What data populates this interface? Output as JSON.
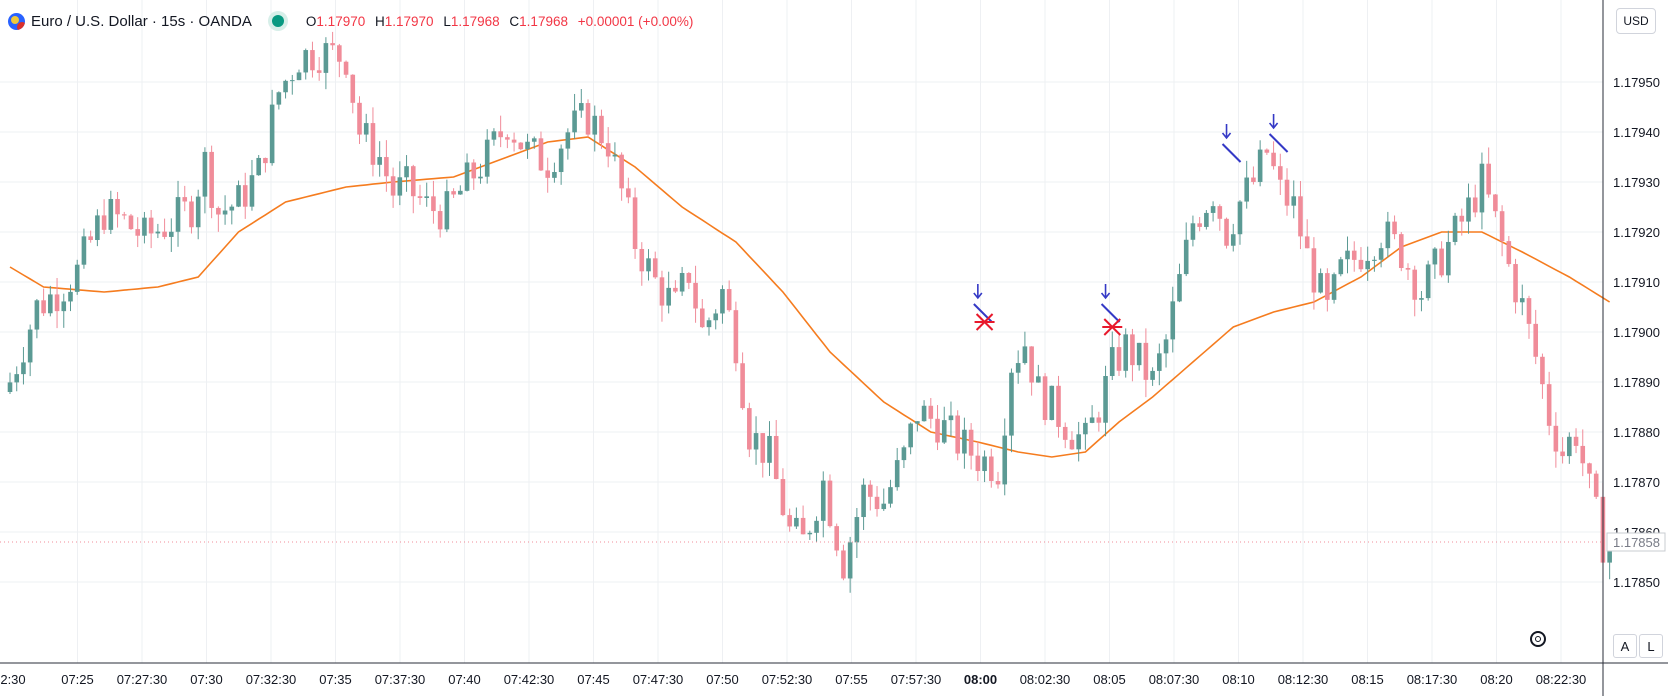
{
  "header": {
    "title": "Euro / U.S. Dollar · 15s · OANDA",
    "open_label": "O",
    "open_value": "1.17970",
    "high_label": "H",
    "high_value": "1.17970",
    "low_label": "L",
    "low_value": "1.17968",
    "close_label": "C",
    "close_value": "1.17968",
    "change": "+0.00001 (+0.00%)"
  },
  "price_scale": {
    "currency": "USD",
    "current_price": "1.17858",
    "ticks": [
      "1.17950",
      "1.17940",
      "1.17930",
      "1.17920",
      "1.17910",
      "1.17900",
      "1.17890",
      "1.17880",
      "1.17870",
      "1.17860",
      "1.17850"
    ]
  },
  "buttons": {
    "auto": "A",
    "log": "L"
  },
  "colors": {
    "up": "#5b9a94",
    "down": "#f08c99",
    "ma": "#f57c1f",
    "marker_arrow": "#3439c6",
    "marker_x": "#e8192c",
    "grid": "#eef0f3"
  },
  "chart_data": {
    "type": "candlestick",
    "title": "Euro / U.S. Dollar · 15s · OANDA",
    "xlabel": "",
    "ylabel": "",
    "ylim": [
      1.17842,
      1.17968
    ],
    "grid": true,
    "x_ticks": [
      "2:30",
      "07:25",
      "07:27:30",
      "07:30",
      "07:32:30",
      "07:35",
      "07:37:30",
      "07:40",
      "07:42:30",
      "07:45",
      "07:47:30",
      "07:50",
      "07:52:30",
      "07:55",
      "07:57:30",
      "08:00",
      "08:02:30",
      "08:05",
      "08:07:30",
      "08:10",
      "08:12:30",
      "08:15",
      "08:17:30",
      "08:20",
      "08:22:30"
    ],
    "x_tick_bold": "08:00",
    "close_path": [
      [
        0,
        1.1789
      ],
      [
        4,
        1.17905
      ],
      [
        7,
        1.17908
      ],
      [
        10,
        1.17912
      ],
      [
        14,
        1.17924
      ],
      [
        17,
        1.17922
      ],
      [
        20,
        1.17919
      ],
      [
        24,
        1.17922
      ],
      [
        27,
        1.17925
      ],
      [
        29,
        1.17934
      ],
      [
        31,
        1.17924
      ],
      [
        34,
        1.17926
      ],
      [
        37,
        1.17932
      ],
      [
        40,
        1.17948
      ],
      [
        43,
        1.17955
      ],
      [
        46,
        1.17956
      ],
      [
        50,
        1.17955
      ],
      [
        52,
        1.1794
      ],
      [
        55,
        1.17935
      ],
      [
        57,
        1.17928
      ],
      [
        59,
        1.17929
      ],
      [
        62,
        1.17925
      ],
      [
        65,
        1.17924
      ],
      [
        68,
        1.1793
      ],
      [
        71,
        1.17935
      ],
      [
        74,
        1.17942
      ],
      [
        77,
        1.17936
      ],
      [
        80,
        1.17934
      ],
      [
        83,
        1.1794
      ],
      [
        86,
        1.17943
      ],
      [
        89,
        1.17938
      ],
      [
        91,
        1.17928
      ],
      [
        93,
        1.17918
      ],
      [
        96,
        1.1791
      ],
      [
        99,
        1.17905
      ],
      [
        101,
        1.17912
      ],
      [
        103,
        1.179
      ],
      [
        106,
        1.17908
      ],
      [
        108,
        1.17898
      ],
      [
        110,
        1.1788
      ],
      [
        113,
        1.17875
      ],
      [
        116,
        1.1786
      ],
      [
        118,
        1.17858
      ],
      [
        121,
        1.1787
      ],
      [
        124,
        1.17854
      ],
      [
        127,
        1.17868
      ],
      [
        130,
        1.17866
      ],
      [
        133,
        1.17875
      ],
      [
        135,
        1.17884
      ],
      [
        138,
        1.17882
      ],
      [
        141,
        1.17878
      ],
      [
        144,
        1.17875
      ],
      [
        147,
        1.17873
      ],
      [
        149,
        1.17894
      ],
      [
        151,
        1.17898
      ],
      [
        153,
        1.17888
      ],
      [
        155,
        1.17885
      ],
      [
        158,
        1.1788
      ],
      [
        160,
        1.17878
      ],
      [
        162,
        1.17885
      ],
      [
        164,
        1.17893
      ],
      [
        166,
        1.17897
      ],
      [
        168,
        1.17894
      ],
      [
        170,
        1.1789
      ],
      [
        172,
        1.17898
      ],
      [
        174,
        1.1791
      ],
      [
        176,
        1.17922
      ],
      [
        179,
        1.17928
      ],
      [
        181,
        1.1792
      ],
      [
        183,
        1.17926
      ],
      [
        185,
        1.1793
      ],
      [
        187,
        1.17936
      ],
      [
        189,
        1.17928
      ],
      [
        191,
        1.17925
      ],
      [
        193,
        1.17915
      ],
      [
        196,
        1.17904
      ],
      [
        198,
        1.17912
      ],
      [
        201,
        1.17916
      ],
      [
        204,
        1.1792
      ],
      [
        207,
        1.17916
      ],
      [
        210,
        1.17908
      ],
      [
        213,
        1.17915
      ],
      [
        216,
        1.17922
      ],
      [
        219,
        1.1793
      ],
      [
        221,
        1.17922
      ],
      [
        223,
        1.17913
      ],
      [
        225,
        1.17905
      ],
      [
        227,
        1.17895
      ],
      [
        229,
        1.17883
      ],
      [
        231,
        1.17876
      ],
      [
        233,
        1.1788
      ],
      [
        235,
        1.17868
      ],
      [
        237,
        1.17858
      ],
      [
        238,
        1.17856
      ]
    ],
    "ma_path": [
      [
        0,
        1.17913
      ],
      [
        5,
        1.17909
      ],
      [
        14,
        1.17908
      ],
      [
        22,
        1.17909
      ],
      [
        28,
        1.17911
      ],
      [
        34,
        1.1792
      ],
      [
        41,
        1.17926
      ],
      [
        50,
        1.17929
      ],
      [
        57,
        1.1793
      ],
      [
        66,
        1.17931
      ],
      [
        74,
        1.17935
      ],
      [
        80,
        1.17938
      ],
      [
        86,
        1.17939
      ],
      [
        93,
        1.17933
      ],
      [
        100,
        1.17925
      ],
      [
        108,
        1.17918
      ],
      [
        115,
        1.17908
      ],
      [
        122,
        1.17896
      ],
      [
        130,
        1.17886
      ],
      [
        137,
        1.1788
      ],
      [
        144,
        1.17878
      ],
      [
        150,
        1.17876
      ],
      [
        155,
        1.17875
      ],
      [
        160,
        1.17876
      ],
      [
        165,
        1.17882
      ],
      [
        170,
        1.17887
      ],
      [
        176,
        1.17894
      ],
      [
        182,
        1.17901
      ],
      [
        188,
        1.17904
      ],
      [
        194,
        1.17906
      ],
      [
        201,
        1.17911
      ],
      [
        207,
        1.17917
      ],
      [
        213,
        1.1792
      ],
      [
        219,
        1.1792
      ],
      [
        225,
        1.17916
      ],
      [
        232,
        1.17911
      ],
      [
        238,
        1.17906
      ]
    ],
    "annotations": [
      {
        "type": "arrow_down",
        "bar": 144,
        "price": 1.17904
      },
      {
        "type": "x_mark",
        "bar": 145,
        "price": 1.17902
      },
      {
        "type": "arrow_down",
        "bar": 163,
        "price": 1.17904
      },
      {
        "type": "x_mark",
        "bar": 164,
        "price": 1.17901
      },
      {
        "type": "arrow_down",
        "bar": 181,
        "price": 1.17936
      },
      {
        "type": "arrow_down",
        "bar": 188,
        "price": 1.17938
      }
    ]
  }
}
